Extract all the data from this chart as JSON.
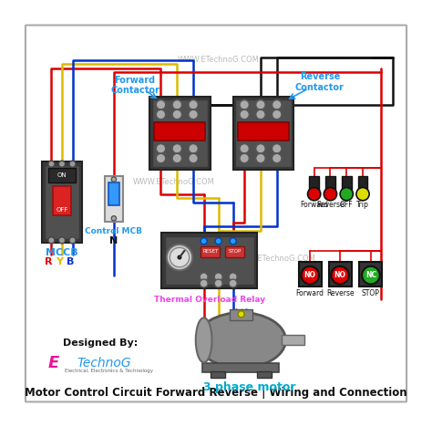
{
  "title": "Motor Control Circuit Forward Reverse | Wiring and Connection",
  "label_forward_contactor": "Forward\nContactor",
  "label_reverse_contactor": "Reverse\nContactor",
  "label_mccb": "MCCB",
  "label_control_mcb": "Control MCB",
  "label_thermal_relay": "Thermal Overload Relay",
  "label_motor": "3 phase motor",
  "label_designed": "Designed By:",
  "label_etechnog_e": "E",
  "label_etechnog_rest": "TechnoG",
  "label_etechnog_sub": "Electrical, Electronics & Technology",
  "label_ryb": [
    "R",
    "Y",
    "B"
  ],
  "label_n": "N",
  "indicator_labels": [
    "Forward",
    "Reverse",
    "OFF",
    "Trip"
  ],
  "button_labels": [
    "Forward",
    "Reverse",
    "STOP"
  ],
  "button_types": [
    "NO",
    "NO",
    "NC"
  ],
  "bg_color": "#ffffff",
  "border_color": "#cccccc",
  "wire_red": "#dd0000",
  "wire_yellow": "#ddbb00",
  "wire_blue": "#0033cc",
  "wire_black": "#111111",
  "indicator_colors": [
    "#dd0000",
    "#dd0000",
    "#22aa22",
    "#dddd00"
  ],
  "button_colors": [
    "#dd0000",
    "#dd0000",
    "#22aa22"
  ],
  "watermark": "WWW.ETechnoG.COM",
  "watermark_color": "#bbbbbb",
  "label_color_blue": "#2299ee",
  "label_color_cyan": "#00aacc",
  "label_color_pink": "#ee44ee",
  "ryb_colors": [
    "#dd0000",
    "#ddbb00",
    "#0033cc"
  ]
}
